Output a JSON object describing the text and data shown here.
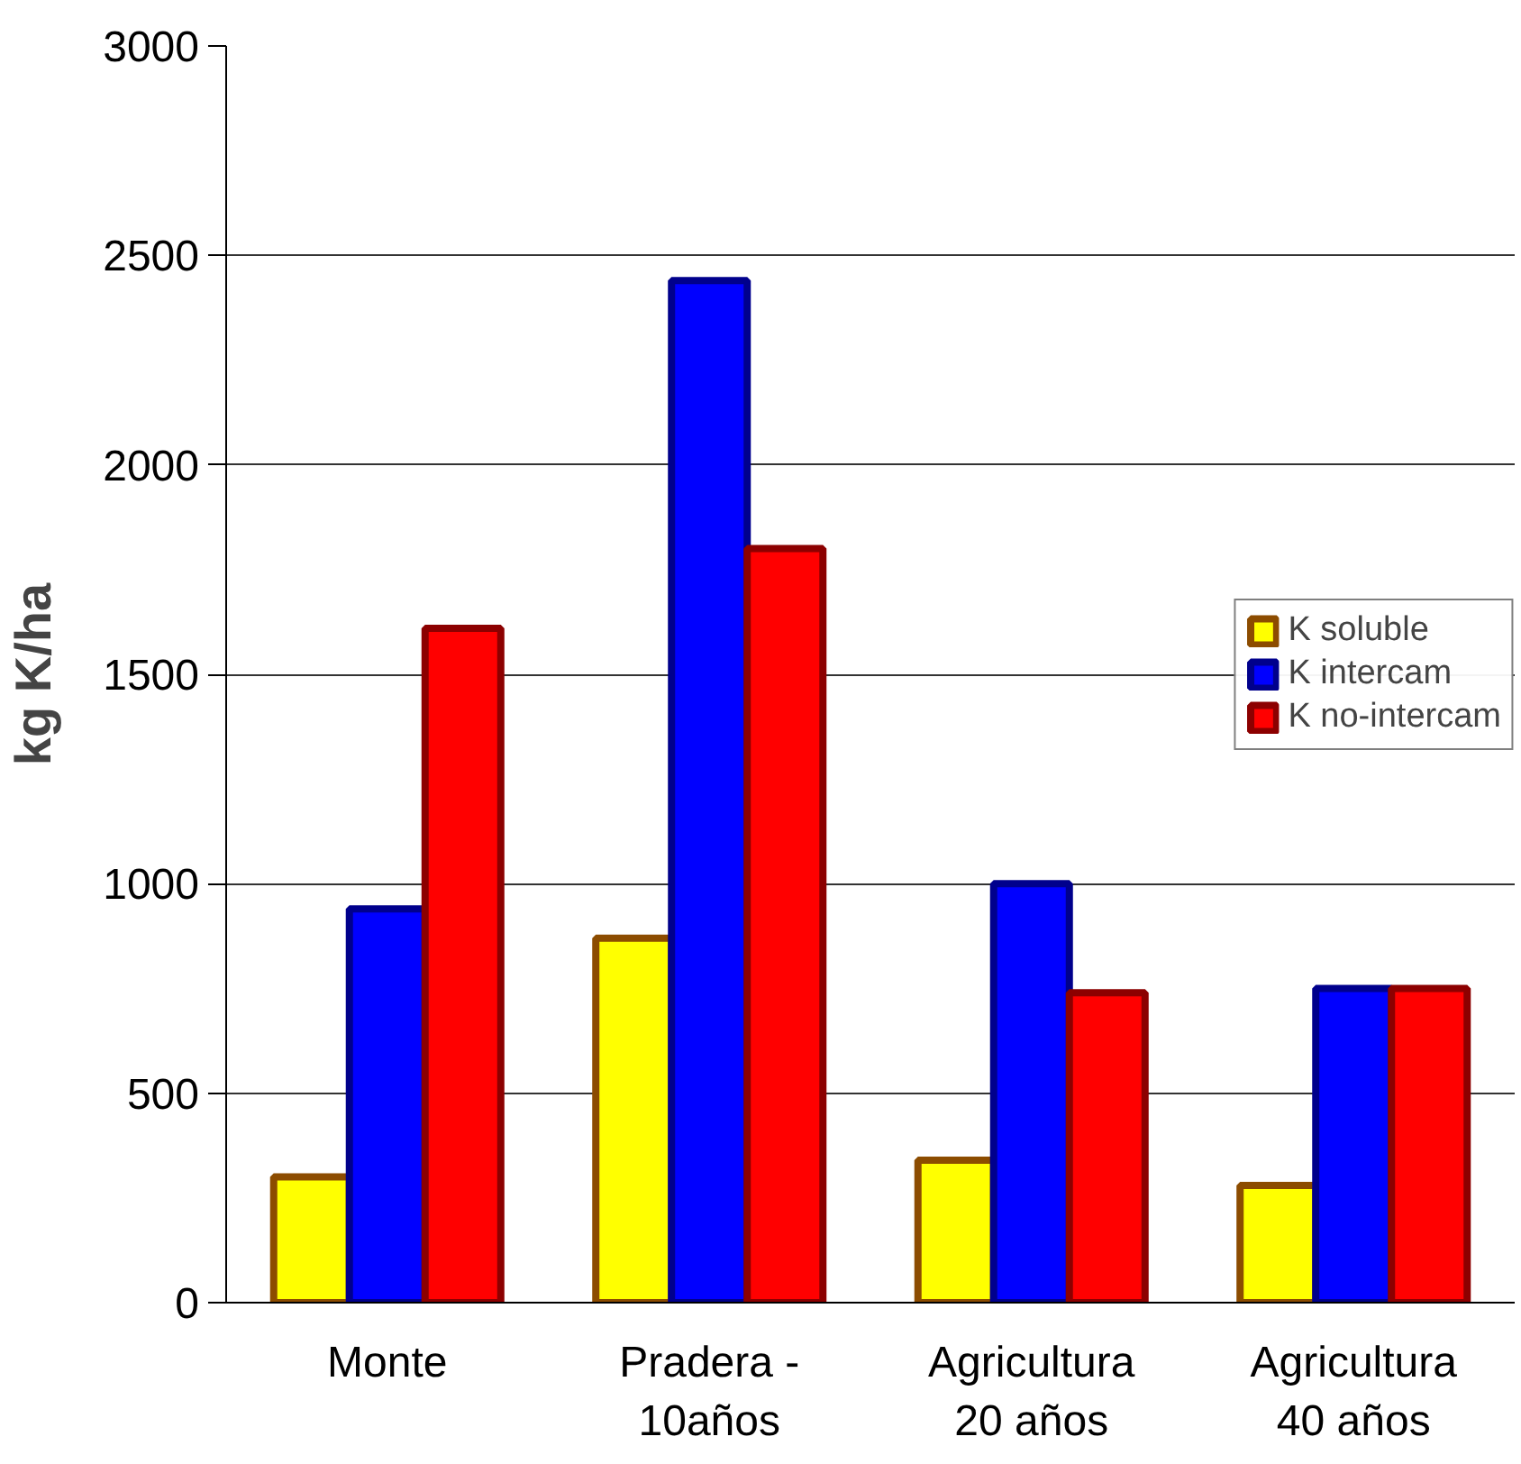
{
  "chart_data": {
    "type": "bar",
    "ylabel": "kg K/ha",
    "categories": [
      "Monte",
      "Pradera -\n10años",
      "Agricultura\n20 años",
      "Agricultura\n40 años"
    ],
    "series": [
      {
        "name": "K soluble",
        "color": "#ffff00",
        "values": [
          300,
          870,
          340,
          280
        ]
      },
      {
        "name": "K intercam",
        "color": "#0000ff",
        "values": [
          940,
          2440,
          1000,
          750
        ]
      },
      {
        "name": "K no-intercam",
        "color": "#ff0000",
        "values": [
          1610,
          1800,
          740,
          750
        ]
      }
    ],
    "ylim": [
      0,
      3000
    ],
    "yticks": [
      0,
      500,
      1000,
      1500,
      2000,
      2500,
      3000
    ],
    "grid": "y",
    "legend": "right"
  }
}
